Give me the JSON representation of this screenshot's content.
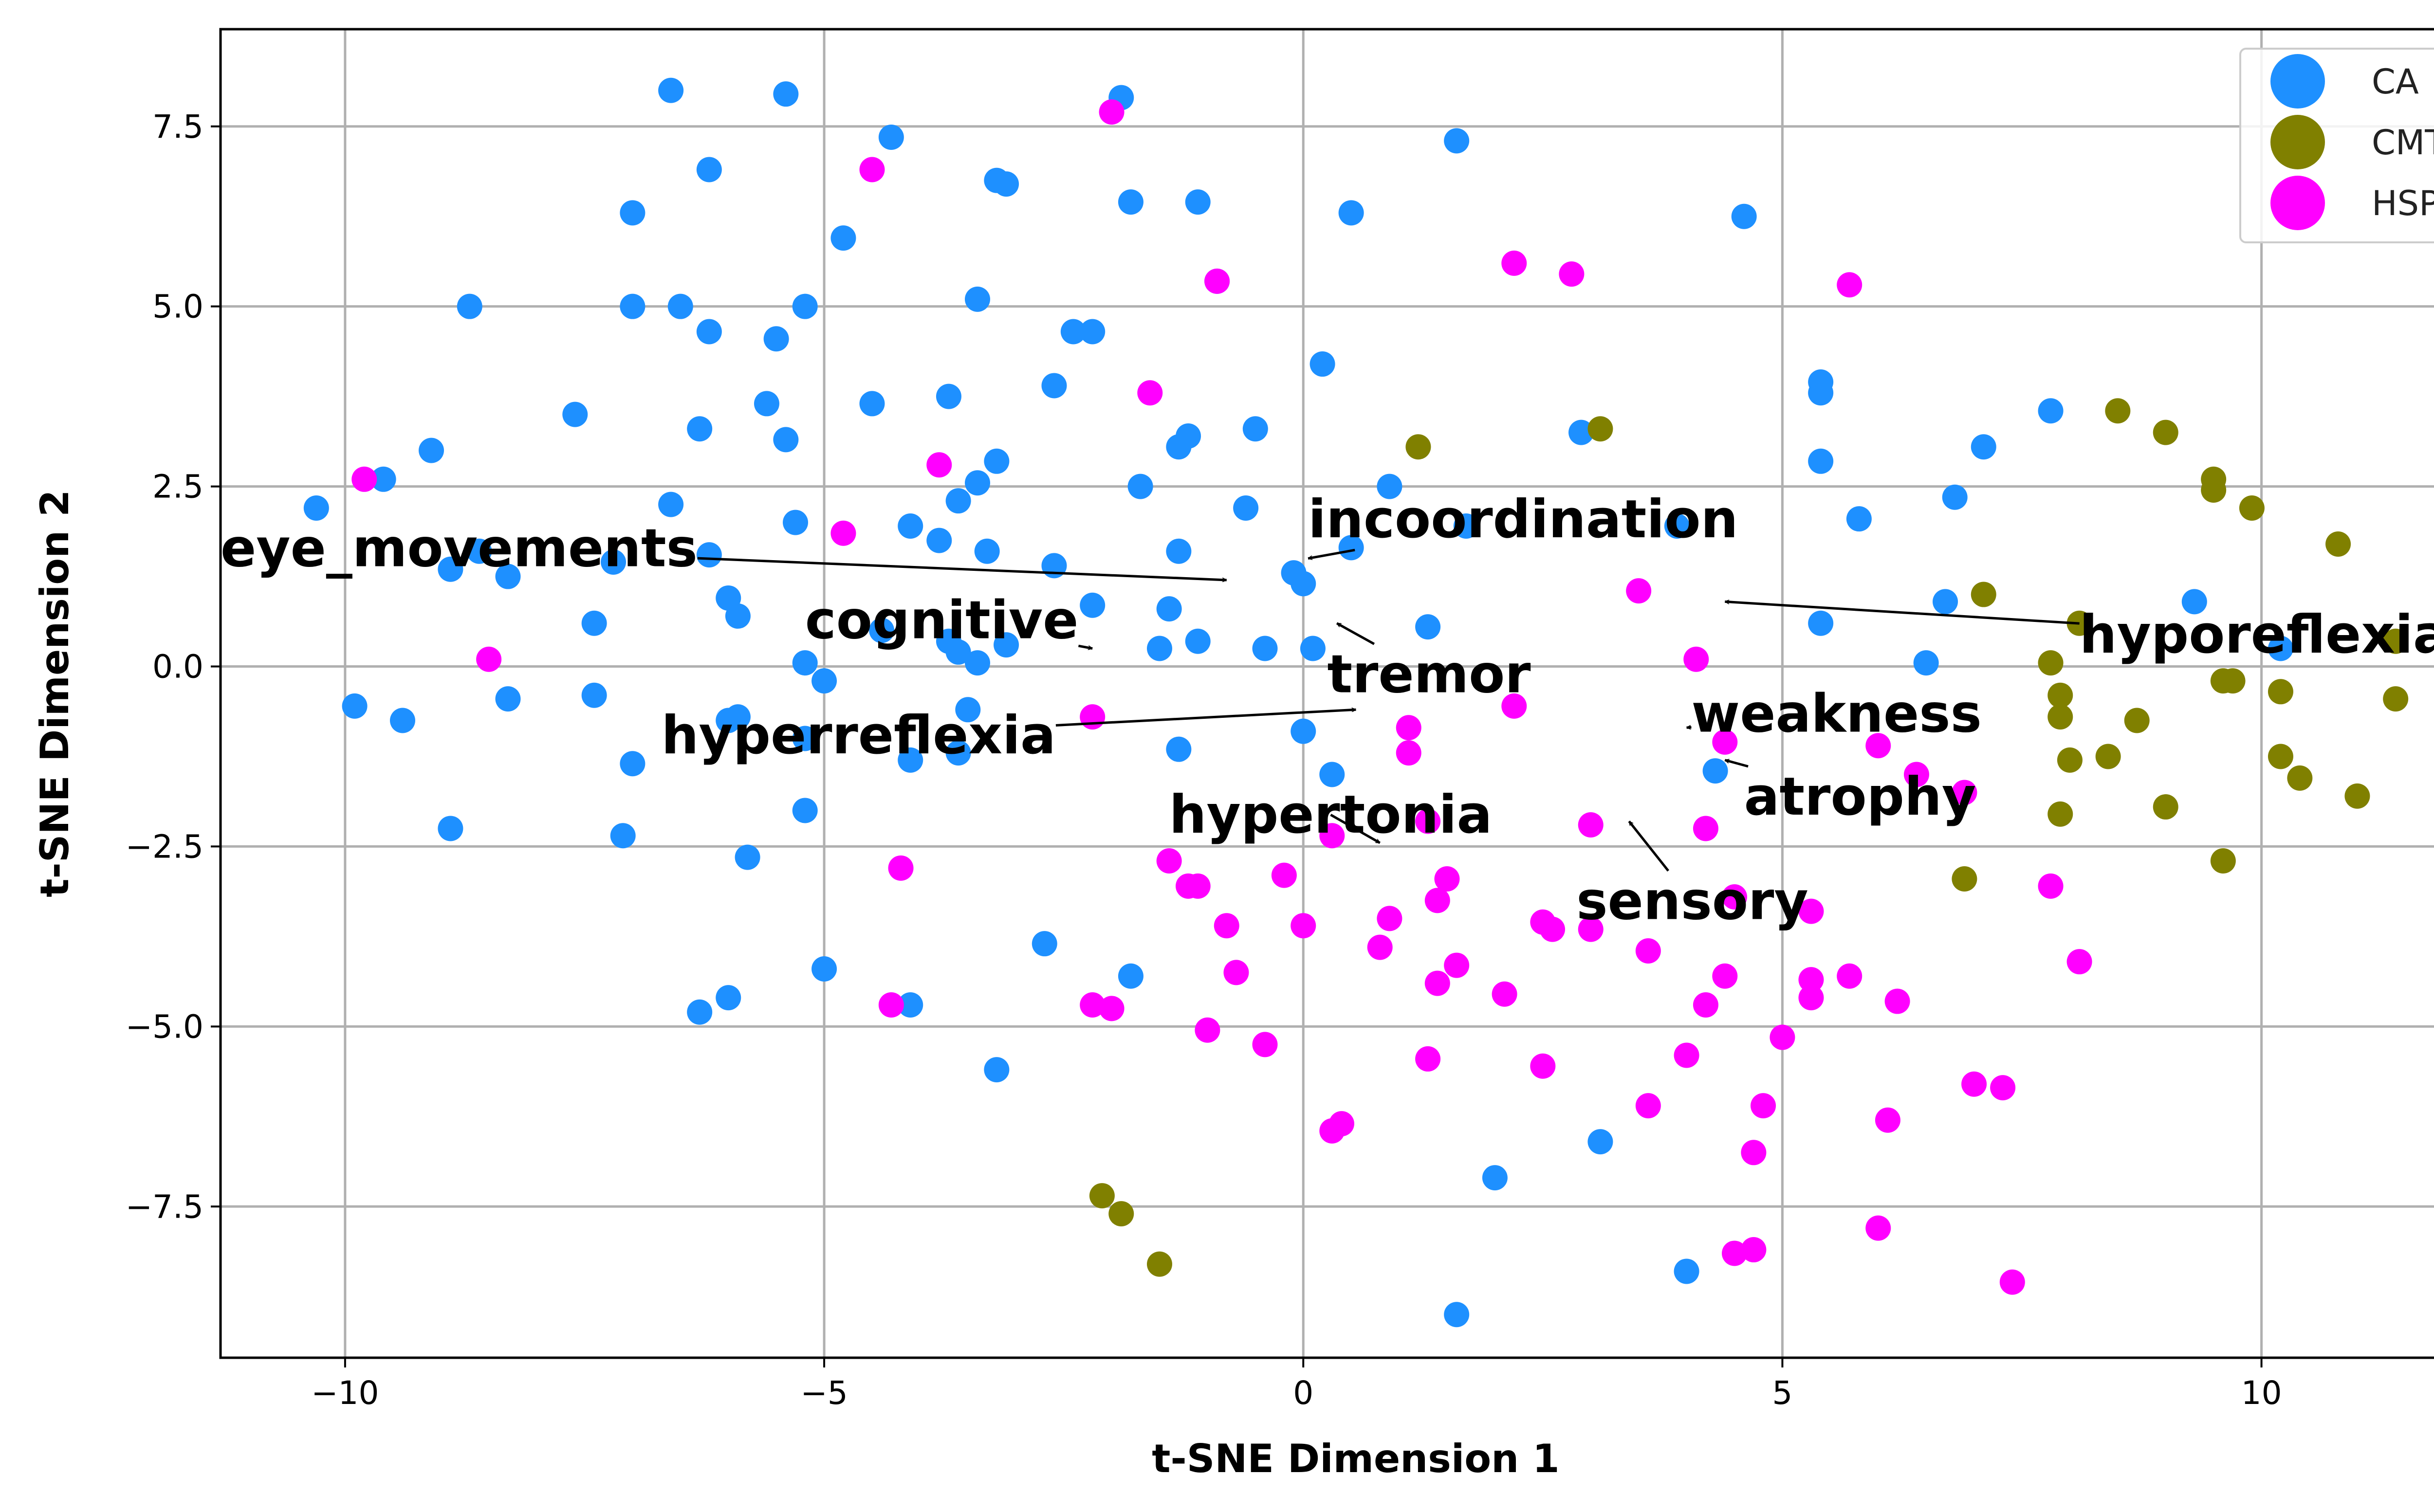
{
  "chart_data": {
    "type": "scatter",
    "title": "",
    "xlabel": "t-SNE Dimension 1",
    "ylabel": "t-SNE Dimension 2",
    "xlim": [
      -11.3,
      12.4
    ],
    "ylim": [
      -9.6,
      8.85
    ],
    "xticks": [
      -10,
      -5,
      0,
      5,
      10
    ],
    "xtick_labels": [
      "−10",
      "−5",
      "0",
      "5",
      "10"
    ],
    "yticks": [
      -7.5,
      -5.0,
      -2.5,
      0.0,
      2.5,
      5.0,
      7.5
    ],
    "ytick_labels": [
      "−7.5",
      "−5.0",
      "−2.5",
      "0.0",
      "2.5",
      "5.0",
      "7.5"
    ],
    "grid": true,
    "legend_position": "top-right",
    "legend": [
      {
        "name": "CA",
        "color": "#1E90FF"
      },
      {
        "name": "CMT",
        "color": "#808000"
      },
      {
        "name": "HSP",
        "color": "#FF00FF"
      }
    ],
    "series": [
      {
        "name": "CA",
        "color": "#1E90FF",
        "points": [
          [
            -6.6,
            8.0
          ],
          [
            -5.4,
            7.95
          ],
          [
            -1.9,
            7.9
          ],
          [
            -4.3,
            7.35
          ],
          [
            1.6,
            7.3
          ],
          [
            -3.2,
            6.75
          ],
          [
            -3.1,
            6.7
          ],
          [
            -6.2,
            6.9
          ],
          [
            -7.0,
            6.3
          ],
          [
            -1.8,
            6.45
          ],
          [
            -1.1,
            6.45
          ],
          [
            0.5,
            6.3
          ],
          [
            4.6,
            6.25
          ],
          [
            -4.8,
            5.95
          ],
          [
            -0.9,
            5.35
          ],
          [
            -8.7,
            5.0
          ],
          [
            -7.0,
            5.0
          ],
          [
            -6.5,
            5.0
          ],
          [
            -5.2,
            5.0
          ],
          [
            -3.4,
            5.1
          ],
          [
            -6.2,
            4.65
          ],
          [
            -5.5,
            4.55
          ],
          [
            -2.4,
            4.65
          ],
          [
            -2.2,
            4.65
          ],
          [
            0.2,
            4.2
          ],
          [
            5.4,
            3.95
          ],
          [
            5.4,
            3.8
          ],
          [
            -5.6,
            3.65
          ],
          [
            -4.5,
            3.65
          ],
          [
            -3.7,
            3.75
          ],
          [
            -2.6,
            3.9
          ],
          [
            -7.6,
            3.5
          ],
          [
            -6.3,
            3.3
          ],
          [
            -5.4,
            3.15
          ],
          [
            -1.3,
            3.05
          ],
          [
            -1.2,
            3.2
          ],
          [
            -0.5,
            3.3
          ],
          [
            2.9,
            3.25
          ],
          [
            7.8,
            3.55
          ],
          [
            7.1,
            3.05
          ],
          [
            -9.1,
            3.0
          ],
          [
            -3.2,
            2.85
          ],
          [
            5.4,
            2.85
          ],
          [
            -9.6,
            2.6
          ],
          [
            -3.4,
            2.55
          ],
          [
            -1.7,
            2.5
          ],
          [
            0.9,
            2.5
          ],
          [
            -3.6,
            2.3
          ],
          [
            -6.6,
            2.25
          ],
          [
            -0.6,
            2.2
          ],
          [
            6.8,
            2.35
          ],
          [
            -10.3,
            2.2
          ],
          [
            5.8,
            2.05
          ],
          [
            -5.3,
            2.0
          ],
          [
            -4.1,
            1.95
          ],
          [
            1.7,
            1.95
          ],
          [
            3.9,
            1.95
          ],
          [
            -3.8,
            1.75
          ],
          [
            -3.3,
            1.6
          ],
          [
            -1.3,
            1.6
          ],
          [
            0.5,
            1.65
          ],
          [
            -8.6,
            1.6
          ],
          [
            -6.2,
            1.55
          ],
          [
            -8.9,
            1.35
          ],
          [
            -8.3,
            1.25
          ],
          [
            -7.2,
            1.45
          ],
          [
            -2.6,
            1.4
          ],
          [
            -0.1,
            1.3
          ],
          [
            0.0,
            1.15
          ],
          [
            -6.0,
            0.95
          ],
          [
            -2.2,
            0.85
          ],
          [
            -1.4,
            0.8
          ],
          [
            6.7,
            0.9
          ],
          [
            9.3,
            0.9
          ],
          [
            -7.4,
            0.6
          ],
          [
            -5.9,
            0.7
          ],
          [
            -4.4,
            0.5
          ],
          [
            -3.7,
            0.35
          ],
          [
            -3.1,
            0.3
          ],
          [
            -1.1,
            0.35
          ],
          [
            1.3,
            0.55
          ],
          [
            5.4,
            0.6
          ],
          [
            -3.6,
            0.2
          ],
          [
            -3.4,
            0.05
          ],
          [
            -1.5,
            0.25
          ],
          [
            -0.4,
            0.25
          ],
          [
            0.1,
            0.25
          ],
          [
            -5.2,
            0.05
          ],
          [
            -5.0,
            -0.2
          ],
          [
            6.5,
            0.05
          ],
          [
            10.2,
            0.25
          ],
          [
            -9.9,
            -0.55
          ],
          [
            -9.4,
            -0.75
          ],
          [
            -8.3,
            -0.45
          ],
          [
            -7.4,
            -0.4
          ],
          [
            -6.0,
            -0.75
          ],
          [
            -5.9,
            -0.7
          ],
          [
            -3.5,
            -0.6
          ],
          [
            -5.2,
            -1.0
          ],
          [
            -1.3,
            -1.15
          ],
          [
            0.0,
            -0.9
          ],
          [
            -7.0,
            -1.35
          ],
          [
            -4.1,
            -1.3
          ],
          [
            -3.6,
            -1.2
          ],
          [
            0.3,
            -1.5
          ],
          [
            4.3,
            -1.45
          ],
          [
            -8.9,
            -2.25
          ],
          [
            -7.1,
            -2.35
          ],
          [
            -5.2,
            -2.0
          ],
          [
            -5.8,
            -2.65
          ],
          [
            -5.0,
            -4.2
          ],
          [
            -2.7,
            -3.85
          ],
          [
            -1.8,
            -4.3
          ],
          [
            -6.3,
            -4.8
          ],
          [
            -6.0,
            -4.6
          ],
          [
            -4.1,
            -4.7
          ],
          [
            -3.2,
            -5.6
          ],
          [
            2.0,
            -7.1
          ],
          [
            3.1,
            -6.6
          ],
          [
            4.0,
            -8.4
          ],
          [
            1.6,
            -9.0
          ]
        ]
      },
      {
        "name": "CMT",
        "color": "#808000",
        "points": [
          [
            1.2,
            3.05
          ],
          [
            3.1,
            3.3
          ],
          [
            8.5,
            3.55
          ],
          [
            9.0,
            3.25
          ],
          [
            9.5,
            2.6
          ],
          [
            9.5,
            2.45
          ],
          [
            9.9,
            2.2
          ],
          [
            10.8,
            1.7
          ],
          [
            7.1,
            1.0
          ],
          [
            8.1,
            0.6
          ],
          [
            11.4,
            0.35
          ],
          [
            7.8,
            0.05
          ],
          [
            7.9,
            -0.4
          ],
          [
            7.9,
            -0.7
          ],
          [
            8.7,
            -0.75
          ],
          [
            9.6,
            -0.2
          ],
          [
            9.7,
            -0.2
          ],
          [
            10.2,
            -0.35
          ],
          [
            11.4,
            -0.45
          ],
          [
            8.0,
            -1.3
          ],
          [
            8.4,
            -1.25
          ],
          [
            10.2,
            -1.25
          ],
          [
            10.4,
            -1.55
          ],
          [
            7.9,
            -2.05
          ],
          [
            9.0,
            -1.95
          ],
          [
            11.0,
            -1.8
          ],
          [
            9.6,
            -2.7
          ],
          [
            6.9,
            -2.95
          ],
          [
            -2.1,
            -7.35
          ],
          [
            -1.9,
            -7.6
          ],
          [
            -1.5,
            -8.3
          ]
        ]
      },
      {
        "name": "HSP",
        "color": "#FF00FF",
        "points": [
          [
            -2.0,
            7.7
          ],
          [
            -4.5,
            6.9
          ],
          [
            -0.9,
            5.35
          ],
          [
            2.2,
            5.6
          ],
          [
            2.8,
            5.45
          ],
          [
            5.7,
            5.3
          ],
          [
            -1.6,
            3.8
          ],
          [
            -3.8,
            2.8
          ],
          [
            -9.8,
            2.6
          ],
          [
            -4.8,
            1.85
          ],
          [
            3.5,
            1.05
          ],
          [
            -8.5,
            0.1
          ],
          [
            4.1,
            0.1
          ],
          [
            -2.2,
            -0.7
          ],
          [
            1.1,
            -0.85
          ],
          [
            2.2,
            -0.55
          ],
          [
            4.4,
            -1.05
          ],
          [
            1.1,
            -1.2
          ],
          [
            6.0,
            -1.1
          ],
          [
            6.4,
            -1.5
          ],
          [
            6.9,
            -1.75
          ],
          [
            3.0,
            -2.2
          ],
          [
            4.2,
            -2.25
          ],
          [
            1.3,
            -2.15
          ],
          [
            0.3,
            -2.35
          ],
          [
            -4.2,
            -2.8
          ],
          [
            -1.4,
            -2.7
          ],
          [
            -1.2,
            -3.05
          ],
          [
            -1.1,
            -3.05
          ],
          [
            -0.2,
            -2.9
          ],
          [
            1.5,
            -2.95
          ],
          [
            1.4,
            -3.25
          ],
          [
            4.5,
            -3.2
          ],
          [
            7.8,
            -3.05
          ],
          [
            -0.8,
            -3.6
          ],
          [
            0.0,
            -3.6
          ],
          [
            0.9,
            -3.5
          ],
          [
            2.5,
            -3.55
          ],
          [
            2.6,
            -3.65
          ],
          [
            3.0,
            -3.65
          ],
          [
            5.3,
            -3.4
          ],
          [
            3.6,
            -3.95
          ],
          [
            0.8,
            -3.9
          ],
          [
            -0.7,
            -4.25
          ],
          [
            1.6,
            -4.15
          ],
          [
            8.1,
            -4.1
          ],
          [
            1.4,
            -4.4
          ],
          [
            2.1,
            -4.55
          ],
          [
            4.4,
            -4.3
          ],
          [
            5.3,
            -4.35
          ],
          [
            5.7,
            -4.3
          ],
          [
            -4.3,
            -4.7
          ],
          [
            -2.2,
            -4.7
          ],
          [
            -2.0,
            -4.75
          ],
          [
            4.2,
            -4.7
          ],
          [
            5.3,
            -4.6
          ],
          [
            6.2,
            -4.65
          ],
          [
            -1.0,
            -5.05
          ],
          [
            -0.4,
            -5.25
          ],
          [
            5.0,
            -5.15
          ],
          [
            1.3,
            -5.45
          ],
          [
            2.5,
            -5.55
          ],
          [
            4.0,
            -5.4
          ],
          [
            7.0,
            -5.8
          ],
          [
            7.3,
            -5.85
          ],
          [
            3.6,
            -6.1
          ],
          [
            4.8,
            -6.1
          ],
          [
            6.1,
            -6.3
          ],
          [
            0.4,
            -6.35
          ],
          [
            0.3,
            -6.45
          ],
          [
            4.7,
            -6.75
          ],
          [
            6.0,
            -7.8
          ],
          [
            4.5,
            -8.15
          ],
          [
            4.7,
            -8.1
          ],
          [
            7.4,
            -8.55
          ]
        ]
      }
    ],
    "annotations": [
      {
        "text": "eye_movements",
        "xytext": [
          -11.3,
          1.65
        ],
        "xy": [
          -0.8,
          1.2
        ]
      },
      {
        "text": "incoordination",
        "xytext": [
          0.05,
          2.05
        ],
        "xy": [
          0.05,
          1.5
        ]
      },
      {
        "text": "cognitive",
        "xytext": [
          -5.2,
          0.65
        ],
        "xy": [
          -2.2,
          0.25
        ]
      },
      {
        "text": "tremor",
        "xytext": [
          0.25,
          -0.1
        ],
        "xy": [
          0.35,
          0.6
        ]
      },
      {
        "text": "hyperreflexia",
        "xytext": [
          -6.7,
          -0.95
        ],
        "xy": [
          0.55,
          -0.6
        ]
      },
      {
        "text": "hyporeflexia",
        "xytext": [
          8.1,
          0.45
        ],
        "xy": [
          4.4,
          0.9
        ]
      },
      {
        "text": "weakness",
        "xytext": [
          4.05,
          -0.65
        ],
        "xy": [
          4.0,
          -0.85
        ]
      },
      {
        "text": "atrophy",
        "xytext": [
          4.6,
          -1.8
        ],
        "xy": [
          4.4,
          -1.3
        ]
      },
      {
        "text": "hypertonia",
        "xytext": [
          -1.4,
          -2.05
        ],
        "xy": [
          0.8,
          -2.45
        ]
      },
      {
        "text": "sensory",
        "xytext": [
          2.85,
          -3.25
        ],
        "xy": [
          3.4,
          -2.15
        ]
      }
    ]
  }
}
